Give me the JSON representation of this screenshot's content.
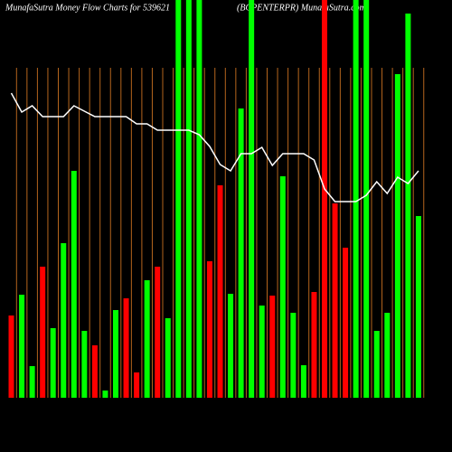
{
  "chart_data": {
    "type": "bar",
    "title": "MunafaSutra  Money Flow  Charts for 539621",
    "subtitle": "(BCPENTERPR) MunafaSutra.com",
    "ylim": [
      0,
      440
    ],
    "grid_color": "#b5651d",
    "line_color": "#ffffff",
    "series": [
      {
        "values": [
          91,
          114,
          35,
          145,
          77,
          171,
          251,
          74,
          58,
          8,
          97,
          110,
          28,
          130,
          145,
          88,
          440,
          440,
          440,
          151,
          235,
          115,
          320,
          440,
          102,
          113,
          245,
          94,
          36,
          117,
          440,
          215,
          166,
          440,
          440,
          74,
          94,
          358,
          425,
          201
        ],
        "colors": [
          "#ff0000",
          "#00ff00",
          "#00ff00",
          "#ff0000",
          "#00ff00",
          "#00ff00",
          "#00ff00",
          "#00ff00",
          "#ff0000",
          "#00ff00",
          "#00ff00",
          "#ff0000",
          "#ff0000",
          "#00ff00",
          "#ff0000",
          "#00ff00",
          "#00ff00",
          "#00ff00",
          "#00ff00",
          "#ff0000",
          "#ff0000",
          "#00ff00",
          "#00ff00",
          "#00ff00",
          "#00ff00",
          "#ff0000",
          "#00ff00",
          "#00ff00",
          "#00ff00",
          "#ff0000",
          "#ff0000",
          "#ff0000",
          "#ff0000",
          "#00ff00",
          "#00ff00",
          "#00ff00",
          "#00ff00",
          "#00ff00",
          "#00ff00",
          "#00ff00"
        ]
      },
      {
        "type": "line",
        "values": [
          337,
          316,
          323,
          311,
          311,
          311,
          323,
          317,
          311,
          311,
          311,
          311,
          303,
          303,
          296,
          296,
          296,
          296,
          291,
          278,
          258,
          251,
          270,
          270,
          277,
          257,
          270,
          270,
          270,
          263,
          231,
          217,
          217,
          217,
          224,
          239,
          226,
          244,
          237,
          251
        ]
      }
    ]
  }
}
